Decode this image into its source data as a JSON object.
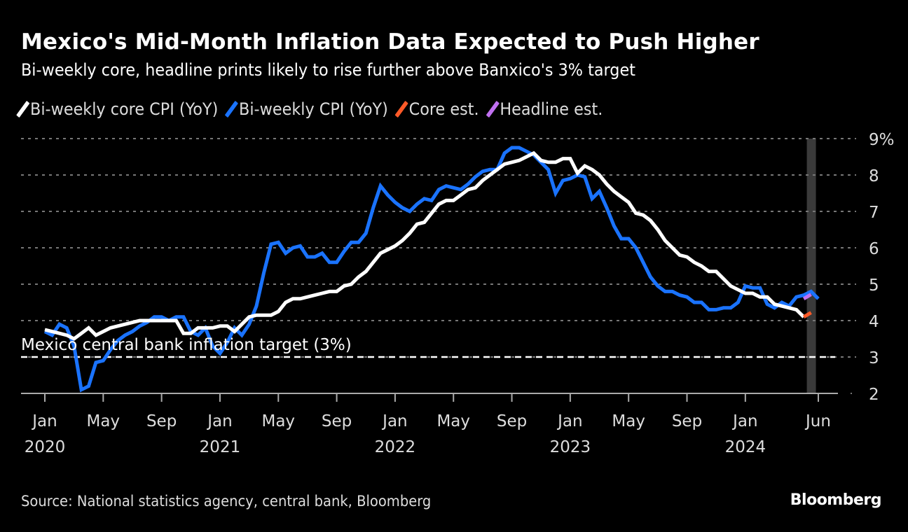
{
  "header": {
    "title": "Mexico's Mid-Month Inflation Data Expected to Push Higher",
    "subtitle": "Bi-weekly core, headline prints likely to rise further above Banxico's 3% target"
  },
  "legend": [
    {
      "label": "Bi-weekly core CPI (YoY)",
      "color": "#ffffff"
    },
    {
      "label": "Bi-weekly CPI (YoY)",
      "color": "#1a73ff"
    },
    {
      "label": "Core est.",
      "color": "#ff5a28"
    },
    {
      "label": "Headline est.",
      "color": "#c070f0"
    }
  ],
  "footer": {
    "source": "Source: National statistics agency, central bank, Bloomberg",
    "brand": "Bloomberg"
  },
  "chart_data": {
    "type": "line",
    "title": "Mexico's Mid-Month Inflation Data Expected to Push Higher",
    "subtitle": "Bi-weekly core, headline prints likely to rise further above Banxico's 3% target",
    "xlabel": "",
    "ylabel": "",
    "ylim": [
      2,
      9
    ],
    "y_ticks": [
      "2",
      "3",
      "4",
      "5",
      "6",
      "7",
      "8",
      "9%"
    ],
    "x_range": [
      "2020-01",
      "2024-07"
    ],
    "x_ticks": [
      {
        "month": 0,
        "label": "Jan",
        "year": "2020"
      },
      {
        "month": 4,
        "label": "May",
        "year": ""
      },
      {
        "month": 8,
        "label": "Sep",
        "year": ""
      },
      {
        "month": 12,
        "label": "Jan",
        "year": "2021"
      },
      {
        "month": 16,
        "label": "May",
        "year": ""
      },
      {
        "month": 20,
        "label": "Sep",
        "year": ""
      },
      {
        "month": 24,
        "label": "Jan",
        "year": "2022"
      },
      {
        "month": 28,
        "label": "May",
        "year": ""
      },
      {
        "month": 32,
        "label": "Sep",
        "year": ""
      },
      {
        "month": 36,
        "label": "Jan",
        "year": "2023"
      },
      {
        "month": 40,
        "label": "May",
        "year": ""
      },
      {
        "month": 44,
        "label": "Sep",
        "year": ""
      },
      {
        "month": 48,
        "label": "Jan",
        "year": "2024"
      },
      {
        "month": 53,
        "label": "Jun",
        "year": ""
      }
    ],
    "grid": true,
    "legend_position": "top-left",
    "reference_line": {
      "value": 3,
      "label": "Mexico central bank inflation target (3%)"
    },
    "highlight_band_month": 52.5,
    "series": [
      {
        "name": "Bi-weekly CPI (YoY)",
        "color": "#1a73ff",
        "x_start_month": 0,
        "step_months": 0.5,
        "values": [
          3.7,
          3.6,
          3.9,
          3.8,
          3.3,
          2.1,
          2.2,
          2.85,
          2.9,
          3.2,
          3.45,
          3.6,
          3.7,
          3.85,
          3.95,
          4.1,
          4.1,
          4.0,
          4.1,
          4.1,
          3.7,
          3.6,
          3.8,
          3.3,
          3.1,
          3.4,
          3.8,
          3.6,
          3.9,
          4.4,
          5.3,
          6.1,
          6.15,
          5.85,
          6.0,
          6.05,
          5.75,
          5.75,
          5.85,
          5.6,
          5.6,
          5.9,
          6.15,
          6.15,
          6.4,
          7.1,
          7.7,
          7.45,
          7.25,
          7.1,
          7.0,
          7.2,
          7.35,
          7.3,
          7.6,
          7.7,
          7.65,
          7.6,
          7.75,
          7.95,
          8.1,
          8.15,
          8.15,
          8.6,
          8.75,
          8.75,
          8.65,
          8.55,
          8.35,
          8.15,
          7.5,
          7.85,
          7.9,
          8.0,
          7.95,
          7.35,
          7.55,
          7.1,
          6.6,
          6.25,
          6.25,
          6.0,
          5.6,
          5.2,
          4.95,
          4.8,
          4.8,
          4.7,
          4.65,
          4.5,
          4.5,
          4.3,
          4.3,
          4.35,
          4.35,
          4.5,
          4.95,
          4.9,
          4.9,
          4.45,
          4.35,
          4.5,
          4.4,
          4.65,
          4.7,
          4.8,
          4.6
        ]
      },
      {
        "name": "Bi-weekly core CPI (YoY)",
        "color": "#ffffff",
        "x_start_month": 0,
        "step_months": 0.5,
        "values": [
          3.75,
          3.7,
          3.65,
          3.6,
          3.5,
          3.65,
          3.8,
          3.6,
          3.7,
          3.8,
          3.85,
          3.9,
          3.95,
          4.0,
          4.0,
          4.0,
          4.0,
          4.0,
          4.0,
          3.65,
          3.65,
          3.8,
          3.8,
          3.8,
          3.85,
          3.85,
          3.7,
          3.9,
          4.1,
          4.15,
          4.15,
          4.15,
          4.25,
          4.5,
          4.6,
          4.6,
          4.65,
          4.7,
          4.75,
          4.8,
          4.8,
          4.95,
          5.0,
          5.2,
          5.35,
          5.6,
          5.85,
          5.95,
          6.05,
          6.2,
          6.4,
          6.65,
          6.7,
          6.95,
          7.2,
          7.3,
          7.3,
          7.45,
          7.6,
          7.65,
          7.85,
          8.0,
          8.15,
          8.3,
          8.35,
          8.4,
          8.5,
          8.6,
          8.4,
          8.35,
          8.35,
          8.45,
          8.45,
          8.05,
          8.25,
          8.15,
          8.0,
          7.75,
          7.55,
          7.4,
          7.25,
          6.95,
          6.9,
          6.75,
          6.5,
          6.2,
          6.0,
          5.8,
          5.75,
          5.6,
          5.5,
          5.35,
          5.35,
          5.15,
          4.95,
          4.85,
          4.75,
          4.75,
          4.65,
          4.65,
          4.45,
          4.4,
          4.35,
          4.3,
          4.1
        ]
      },
      {
        "name": "Core est.",
        "color": "#ff5a28",
        "points": [
          {
            "month": 52,
            "value": 4.1
          },
          {
            "month": 52.5,
            "value": 4.22
          }
        ]
      },
      {
        "name": "Headline est.",
        "color": "#c070f0",
        "points": [
          {
            "month": 52,
            "value": 4.6
          },
          {
            "month": 52.5,
            "value": 4.72
          }
        ]
      }
    ]
  }
}
